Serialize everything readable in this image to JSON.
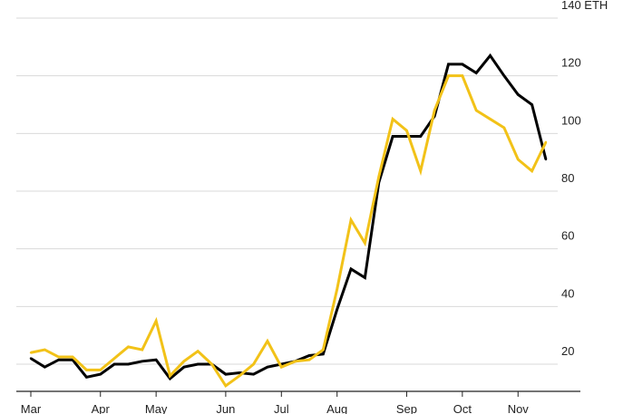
{
  "chart_data": {
    "type": "line",
    "title": "",
    "xlabel": "",
    "ylabel": "",
    "y_unit": "ETH",
    "ylim": [
      0,
      140
    ],
    "y_ticks": [
      20,
      40,
      60,
      80,
      100,
      120,
      140
    ],
    "y_tick_labels": [
      "20",
      "40",
      "60",
      "80",
      "100",
      "120",
      "140 ETH"
    ],
    "x_tick_labels": [
      "Mar",
      "Apr",
      "May",
      "Jun",
      "Jul",
      "Aug",
      "Sep",
      "Oct",
      "Nov"
    ],
    "x_tick_weeks": [
      0,
      5,
      9,
      14,
      18,
      22,
      27,
      31,
      35
    ],
    "legend": "none",
    "grid": "horizontal",
    "series": [
      {
        "color": "#000000",
        "values": [
          22,
          19,
          21.5,
          21.5,
          15.5,
          16.5,
          20,
          20,
          21,
          21.5,
          15,
          19,
          20,
          20,
          16.5,
          17,
          16.5,
          19,
          20,
          21,
          23,
          23.5,
          39,
          53,
          50,
          83,
          99,
          99,
          99,
          106,
          124,
          124,
          121,
          127,
          120,
          113.5,
          110,
          91
        ]
      },
      {
        "color": "#f2c218",
        "values": [
          24,
          25,
          22.5,
          22.5,
          18,
          18,
          22,
          26,
          25,
          35,
          16,
          21,
          24.5,
          20,
          12.5,
          16,
          20,
          28,
          19,
          21,
          21.5,
          25,
          46,
          70,
          62,
          85,
          105,
          101,
          87,
          108,
          120,
          120,
          108,
          105,
          102,
          91,
          87,
          97
        ]
      }
    ]
  }
}
